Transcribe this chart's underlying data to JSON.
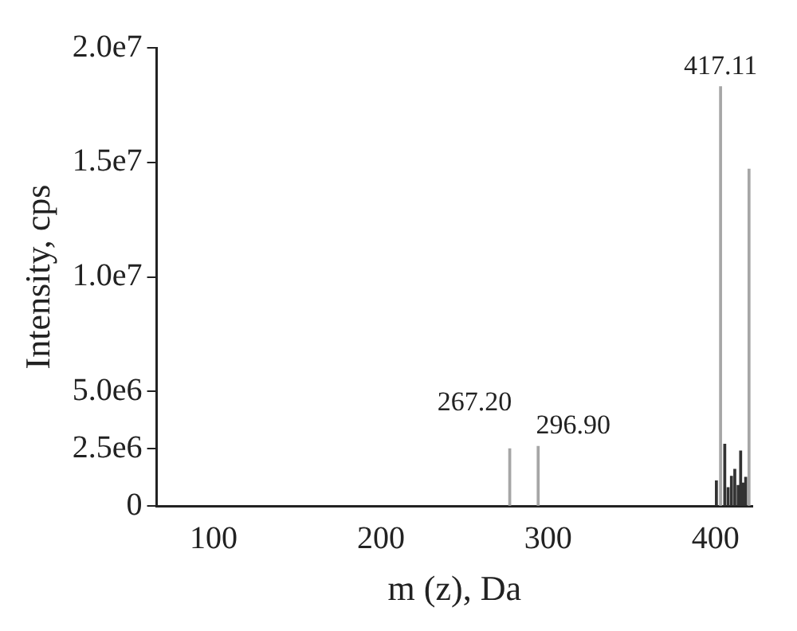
{
  "chart_data": {
    "type": "bar",
    "xlabel": "m (z), Da",
    "ylabel": "Intensity, cps",
    "series": [
      {
        "color": "#a6a6a6",
        "x": [
          277,
          294,
          403,
          420
        ],
        "values": [
          2500000,
          2600000,
          18300000,
          14700000
        ]
      },
      {
        "color": "#333333",
        "x": [
          400.5,
          405.5,
          407.5,
          409.5,
          411.5,
          413.5,
          415,
          416.5,
          418
        ],
        "values": [
          1100000,
          2700000,
          800000,
          1300000,
          1600000,
          900000,
          2400000,
          1000000,
          1250000
        ]
      }
    ],
    "annotations": [
      {
        "text": "267.20",
        "x": 277,
        "y": 2500000
      },
      {
        "text": "296.90",
        "x": 294,
        "y": 2600000
      },
      {
        "text": "417.11",
        "x": 403,
        "y": 18300000
      }
    ],
    "xlim": [
      66,
      422
    ],
    "xticks": [
      100,
      200,
      300,
      400
    ],
    "ylim": [
      0,
      20000000
    ],
    "yticks": [
      {
        "value": 0,
        "label": "0"
      },
      {
        "value": 2500000,
        "label": "2.5e6"
      },
      {
        "value": 5000000,
        "label": "5.0e6"
      },
      {
        "value": 10000000,
        "label": "1.0e7"
      },
      {
        "value": 15000000,
        "label": "1.5e7"
      },
      {
        "value": 20000000,
        "label": "2.0e7"
      }
    ],
    "grid": false,
    "legend": false
  }
}
